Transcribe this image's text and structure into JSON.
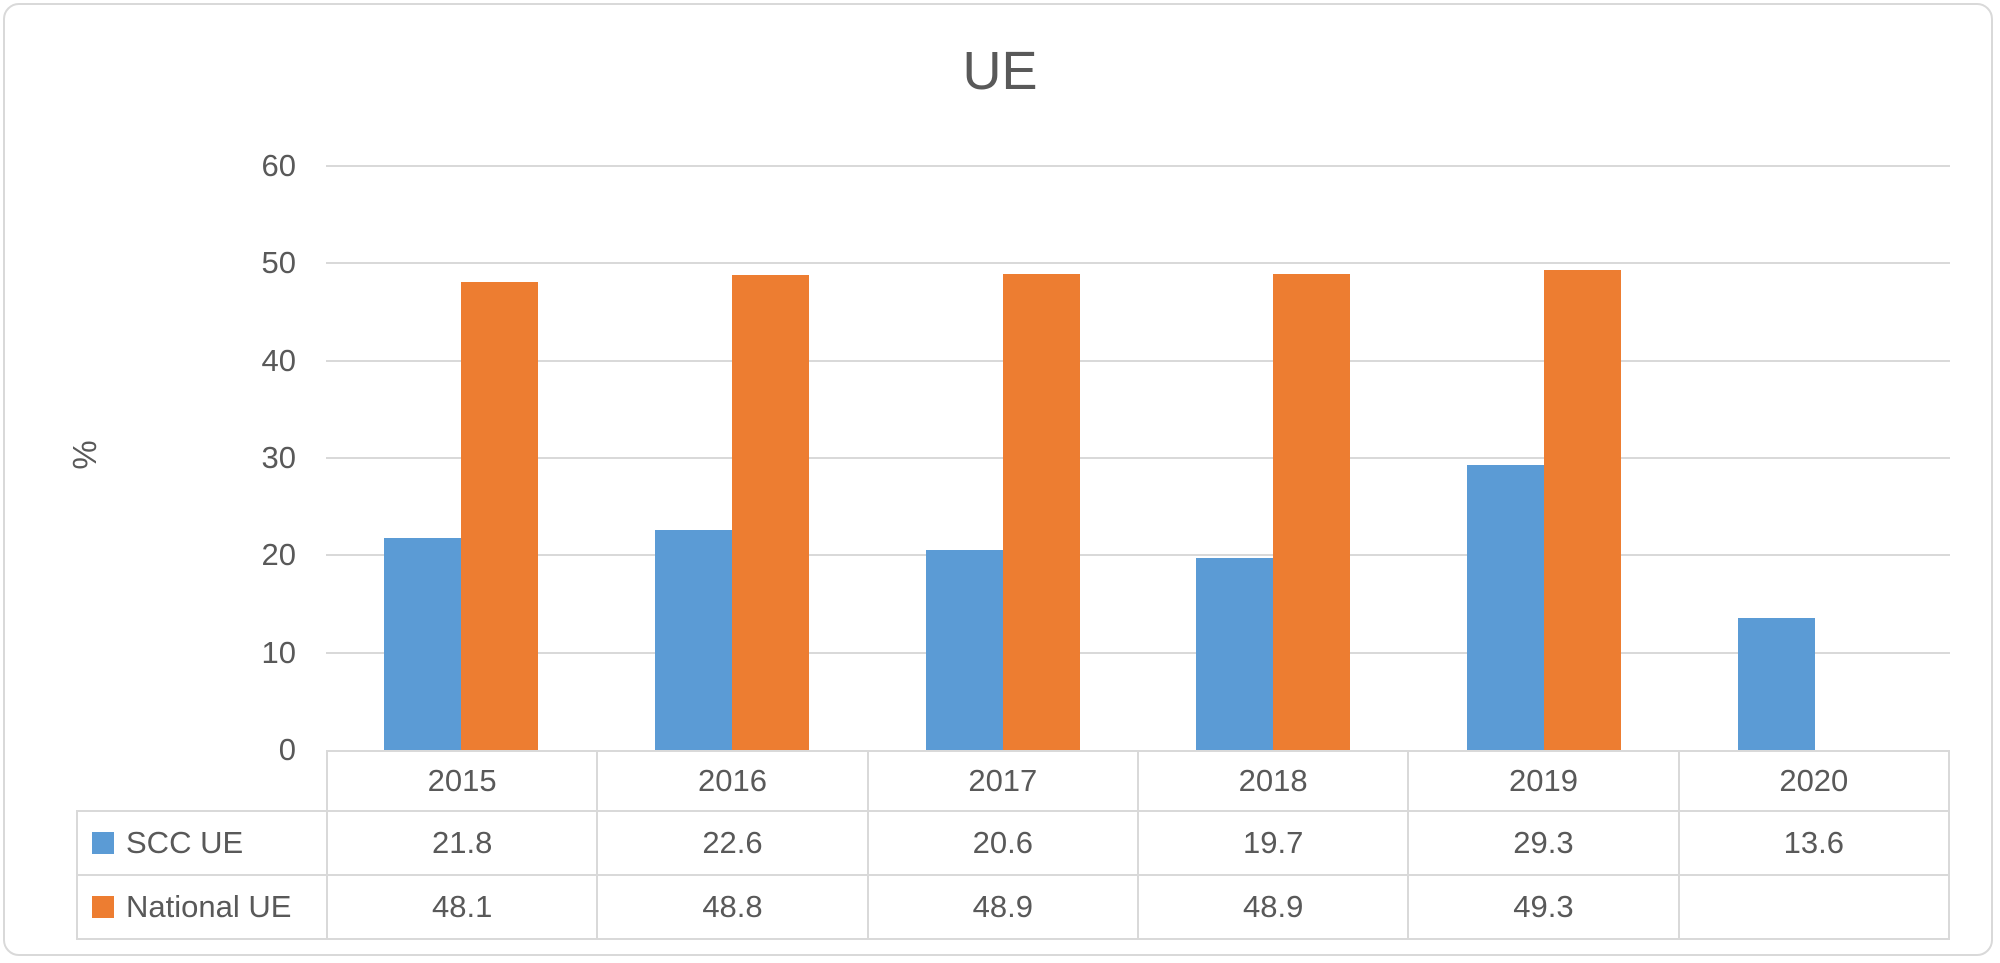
{
  "chart_data": {
    "type": "bar",
    "title": "UE",
    "xlabel": "",
    "ylabel": "%",
    "categories": [
      "2015",
      "2016",
      "2017",
      "2018",
      "2019",
      "2020"
    ],
    "series": [
      {
        "name": "SCC UE",
        "color": "#5B9BD5",
        "values": [
          21.8,
          22.6,
          20.6,
          19.7,
          29.3,
          13.6
        ]
      },
      {
        "name": "National UE",
        "color": "#ED7D31",
        "values": [
          48.1,
          48.8,
          48.9,
          48.9,
          49.3,
          null
        ]
      }
    ],
    "y_ticks": [
      0,
      10,
      20,
      30,
      40,
      50,
      60
    ],
    "ylim": [
      0,
      60
    ],
    "grid": true,
    "legend_position": "data-table-left",
    "data_table_shown": true
  },
  "colors": {
    "series_scc_ue": "#5B9BD5",
    "series_national_ue": "#ED7D31",
    "gridline": "#D9D9D9",
    "table_border": "#D9D9D9",
    "text": "#595959",
    "background": "#FFFFFF"
  }
}
